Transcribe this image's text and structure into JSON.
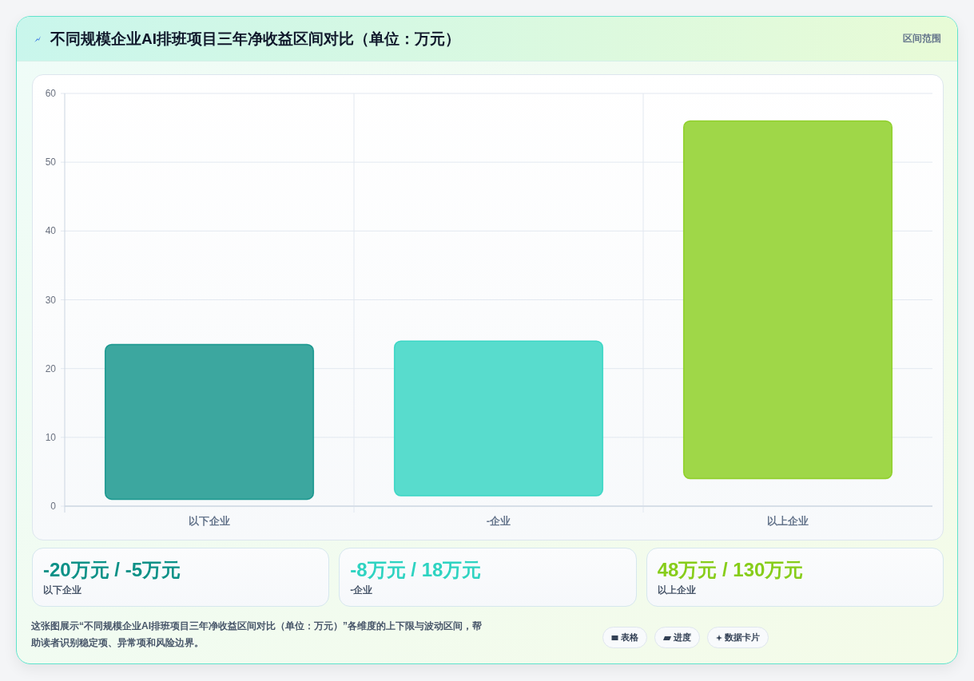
{
  "chart_data": {
    "type": "bar",
    "title": "不同规模企业AI排班项目三年净收益区间对比（单位：万元）",
    "categories": [
      "以下企业",
      "-企业",
      "以上企业"
    ],
    "values": [
      22.5,
      22.5,
      52
    ],
    "base": [
      1,
      1.5,
      4
    ],
    "colors": [
      "#3ca79f",
      "#58dccd",
      "#9fd748"
    ],
    "ylim": [
      0,
      60
    ],
    "yticks": [
      0,
      10,
      20,
      30,
      40,
      50,
      60
    ],
    "grid": true,
    "annotations": [
      "区间范围",
      "-20万元 / -5万元",
      "-8万元 / 18万元",
      "48万元 / 130万元",
      "这张图展示“不同规模企业AI排班项目三年净收益区间对比（单位：万元）”各维度的上下限与波动区间，帮助读者识别稳定项、异常项和风险边界。",
      "表格",
      "进度",
      "数据卡片"
    ]
  }
}
